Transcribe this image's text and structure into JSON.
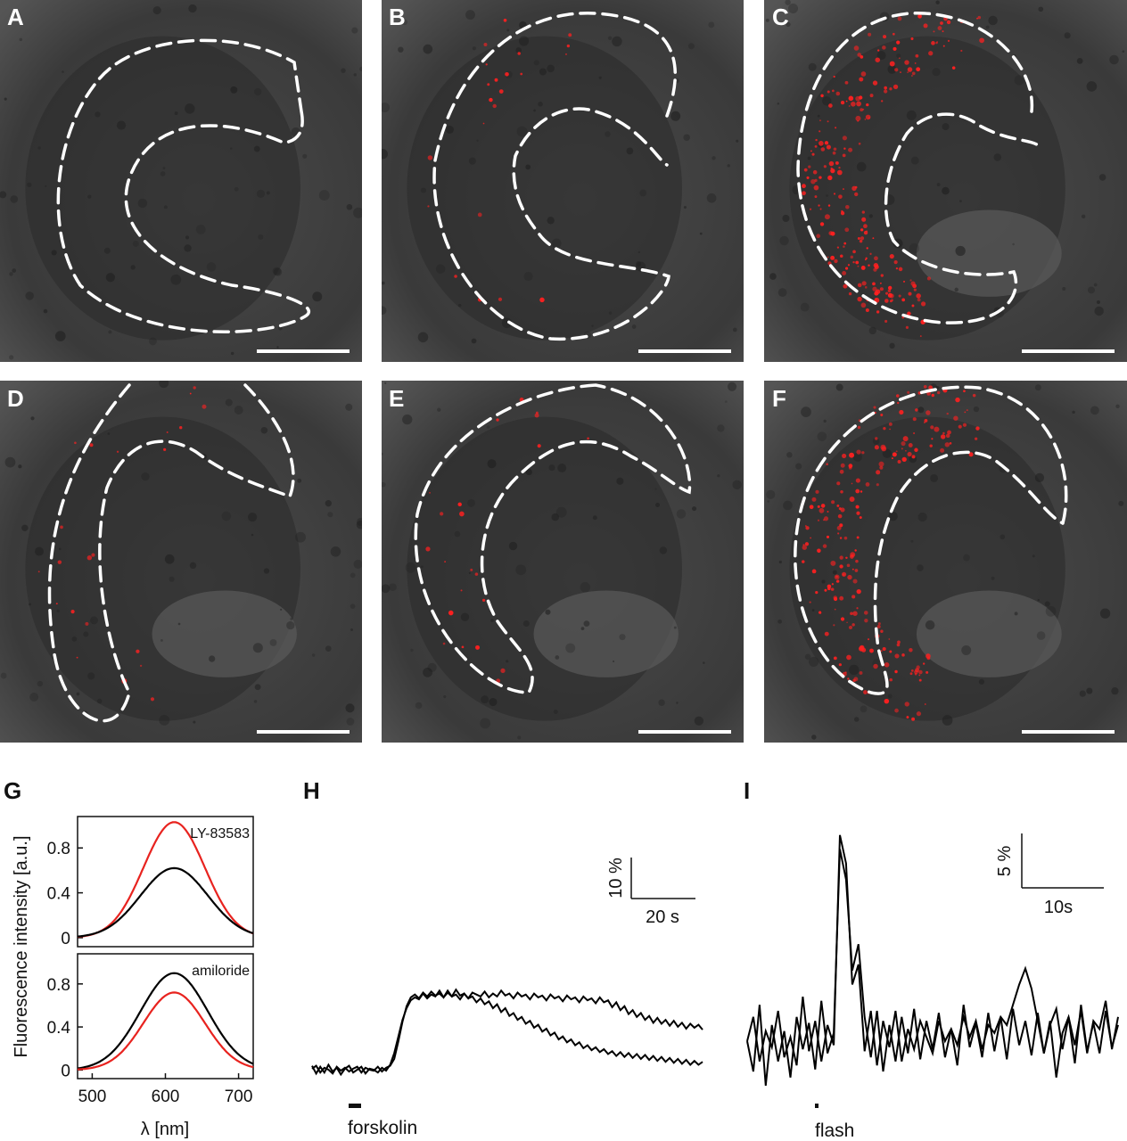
{
  "panels": [
    {
      "letter": "A",
      "signal": "none"
    },
    {
      "letter": "B",
      "signal": "sparse"
    },
    {
      "letter": "C",
      "signal": "strong"
    },
    {
      "letter": "D",
      "signal": "sparse"
    },
    {
      "letter": "E",
      "signal": "sparse"
    },
    {
      "letter": "F",
      "signal": "strong"
    }
  ],
  "colors": {
    "fluorescence": "#ff2020",
    "outline": "#ffffff",
    "tissue": "#3a3a3a",
    "trace": "#000000",
    "red_spectrum": "#e8231f"
  },
  "labels": {
    "G": "G",
    "H": "H",
    "I": "I"
  },
  "chart_data": [
    {
      "id": "G-top",
      "type": "line",
      "annotation": "LY-83583",
      "ylabel": "Fluorescence intensity [a.u.]",
      "yticks": [
        "0",
        "0.4",
        "0.8"
      ],
      "xlim": [
        480,
        720
      ],
      "ylim": [
        -0.08,
        1.08
      ],
      "series": [
        {
          "color": "red",
          "peak_x": 612,
          "amplitude": 1.03,
          "sigma": 42,
          "values_at": [
            [
              480,
              0.0
            ],
            [
              540,
              0.3
            ],
            [
              612,
              1.03
            ],
            [
              680,
              0.3
            ],
            [
              720,
              0.0
            ]
          ]
        },
        {
          "color": "black",
          "peak_x": 612,
          "amplitude": 0.62,
          "sigma": 46,
          "values_at": [
            [
              480,
              0.0
            ],
            [
              540,
              0.2
            ],
            [
              612,
              0.62
            ],
            [
              680,
              0.2
            ],
            [
              720,
              0.0
            ]
          ]
        }
      ]
    },
    {
      "id": "G-bottom",
      "type": "line",
      "annotation": "amiloride",
      "xlabel": "λ [nm]",
      "xticks": [
        "500",
        "600",
        "700"
      ],
      "yticks": [
        "0",
        "0.4",
        "0.8"
      ],
      "xlim": [
        480,
        720
      ],
      "ylim": [
        -0.08,
        1.08
      ],
      "series": [
        {
          "color": "black",
          "peak_x": 612,
          "amplitude": 0.9,
          "sigma": 46
        },
        {
          "color": "red",
          "peak_x": 612,
          "amplitude": 0.72,
          "sigma": 42
        }
      ]
    },
    {
      "id": "H",
      "type": "line",
      "stimulus": "forskolin",
      "scalebar": {
        "y": "10 %",
        "x": "20 s"
      },
      "series": [
        {
          "values": [
            0.5,
            -0.3,
            0.4,
            -0.2,
            0.6,
            -0.1,
            0.3,
            -0.4,
            0.2,
            0.5,
            -0.2,
            0.1,
            0.4,
            -0.3,
            0.2,
            0.1,
            -0.2,
            0.3,
            0.0,
            0.6,
            1.8,
            3.5,
            5.2,
            6.4,
            7.2,
            7.5,
            7.3,
            7.9,
            7.4,
            7.8,
            7.6,
            8.2,
            7.5,
            8.0,
            7.6,
            8.3,
            7.7,
            7.9,
            7.4,
            8.0,
            7.8,
            7.6,
            8.1,
            7.5,
            7.9,
            7.6,
            8.2,
            7.7,
            7.9,
            7.4,
            8.0,
            7.6,
            7.8,
            7.3,
            7.9,
            7.5,
            7.7,
            7.2,
            7.8,
            7.4,
            7.6,
            7.1,
            7.7,
            7.3,
            7.5,
            7.0,
            7.6,
            7.2,
            7.4,
            6.9,
            7.5,
            7.0,
            7.2,
            6.5,
            7.0,
            6.2,
            6.6,
            5.8,
            6.2,
            5.5,
            5.9,
            5.2,
            5.6,
            4.9,
            5.4,
            4.8,
            5.2,
            4.6,
            5.1,
            4.5,
            4.9,
            4.3,
            4.8,
            4.4,
            4.7,
            4.2
          ]
        },
        {
          "values": [
            0.2,
            0.5,
            -0.2,
            0.3,
            0.1,
            -0.3,
            0.4,
            0.0,
            0.3,
            -0.1,
            0.2,
            0.4,
            -0.2,
            0.3,
            0.1,
            0.0,
            0.4,
            -0.1,
            0.3,
            0.5,
            1.2,
            3.0,
            5.0,
            6.6,
            7.5,
            7.8,
            7.4,
            8.0,
            7.6,
            8.1,
            7.7,
            7.9,
            7.5,
            8.2,
            7.6,
            7.8,
            7.3,
            7.9,
            7.4,
            7.6,
            7.0,
            7.4,
            6.8,
            7.1,
            6.4,
            6.8,
            6.0,
            6.4,
            5.6,
            5.9,
            5.2,
            5.5,
            4.8,
            5.1,
            4.4,
            4.7,
            4.0,
            4.3,
            3.6,
            3.9,
            3.2,
            3.5,
            2.9,
            3.2,
            2.6,
            2.9,
            2.3,
            2.6,
            2.1,
            2.4,
            1.9,
            2.2,
            1.7,
            2.0,
            1.5,
            1.9,
            1.4,
            1.8,
            1.3,
            1.7,
            1.2,
            1.6,
            1.1,
            1.5,
            1.0,
            1.4,
            0.9,
            1.3,
            0.8,
            1.2,
            0.7,
            1.1,
            0.6,
            1.0,
            0.6,
            0.9
          ]
        }
      ]
    },
    {
      "id": "I",
      "type": "line",
      "stimulus": "flash",
      "scalebar": {
        "y": "5 %",
        "x": "10s"
      },
      "series": [
        {
          "values": [
            0.0,
            -1.5,
            1.8,
            -2.2,
            0.8,
            -1.0,
            0.5,
            -1.8,
            1.2,
            -0.4,
            0.9,
            -1.4,
            2.0,
            -0.6,
            0.4,
            9.5,
            8.0,
            3.5,
            4.8,
            1.2,
            -0.8,
            1.5,
            -1.5,
            0.8,
            -1.0,
            1.2,
            -0.6,
            1.6,
            -0.9,
            1.0,
            -0.4,
            1.4,
            -0.8,
            0.6,
            -1.2,
            1.8,
            -0.3,
            0.9,
            -0.8,
            1.4,
            -0.5,
            1.2,
            -0.9,
            1.6,
            -0.2,
            1.0,
            -0.7,
            1.4,
            -0.6,
            0.8,
            1.6,
            -0.4,
            1.2,
            -1.1,
            1.8,
            -0.5,
            0.9,
            -0.6,
            1.5,
            -0.3,
            0.8
          ]
        },
        {
          "values": [
            0.0,
            1.2,
            -1.0,
            0.5,
            -0.3,
            1.5,
            -0.8,
            0.2,
            -1.2,
            2.2,
            -0.5,
            1.0,
            -1.0,
            0.8,
            -0.2,
            10.2,
            8.8,
            2.8,
            3.8,
            -0.5,
            1.5,
            -1.2,
            1.0,
            -0.3,
            1.5,
            -1.0,
            0.6,
            -0.4,
            1.0,
            0.2,
            -0.6,
            1.0,
            0.0,
            0.6,
            -0.2,
            1.2,
            0.2,
            1.0,
            -0.4,
            0.8,
            0.4,
            1.2,
            0.8,
            1.8,
            2.8,
            3.6,
            2.6,
            1.0,
            -0.6,
            1.0,
            -1.8,
            0.4,
            1.2,
            -0.2,
            1.5,
            -0.6,
            1.0,
            0.6,
            2.0,
            -0.4,
            1.2
          ]
        }
      ]
    }
  ]
}
